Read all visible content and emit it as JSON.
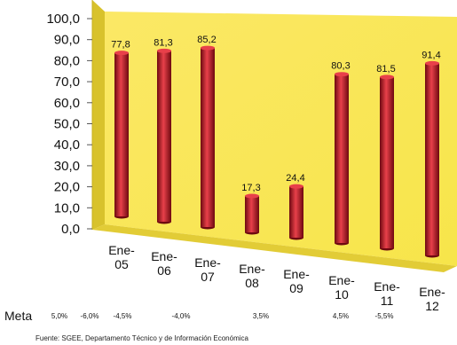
{
  "chart_data": {
    "type": "bar",
    "title": "",
    "xlabel": "",
    "ylabel": "",
    "ylim": [
      0,
      100
    ],
    "yticks": [
      "100,0",
      "90,0",
      "80,0",
      "70,0",
      "60,0",
      "50,0",
      "40,0",
      "30,0",
      "20,0",
      "10,0",
      "0,0"
    ],
    "categories": [
      [
        "Ene-",
        "05"
      ],
      [
        "Ene-",
        "06"
      ],
      [
        "Ene-",
        "07"
      ],
      [
        "Ene-",
        "08"
      ],
      [
        "Ene-",
        "09"
      ],
      [
        "Ene-",
        "10"
      ],
      [
        "Ene-",
        "11"
      ],
      [
        "Ene-",
        "12"
      ]
    ],
    "values": [
      77.8,
      81.3,
      85.2,
      17.3,
      24.4,
      80.3,
      81.5,
      91.4
    ],
    "value_labels": [
      "77,8",
      "81,3",
      "85,2",
      "17,3",
      "24,4",
      "80,3",
      "81,5",
      "91,4"
    ],
    "meta_label": "Meta",
    "meta_values": [
      "5,0%",
      "-6,0%",
      "-4,5%",
      "-4,0%",
      "3,5%",
      "4,5%",
      "-5,5%"
    ],
    "source": "Fuente: SGEE, Departamento Técnico y de Información Económica",
    "colors": {
      "wall": "#f7e54a",
      "floor": "#e2cc36",
      "bar": "#c0141f",
      "bar_dark": "#6e0910",
      "bar_light": "#e8404a"
    },
    "grid": false,
    "legend": "none"
  }
}
